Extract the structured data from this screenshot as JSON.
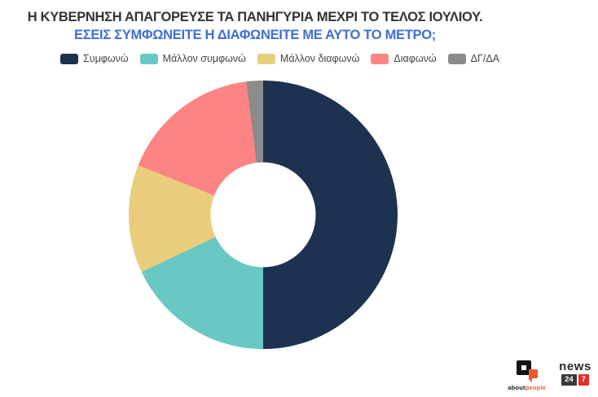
{
  "chart_data": {
    "type": "pie",
    "subtype": "donut",
    "title": "Η ΚΥΒΕΡΝΗΣΗ ΑΠΑΓΟΡΕΥΣΕ ΤΑ ΠΑΝΗΓΥΡΙΑ ΜΕΧΡΙ ΤΟ ΤΕΛΟΣ ΙΟΥΛΙΟΥ.",
    "subtitle": "ΕΣΕΙΣ ΣΥΜΦΩΝΕΙΤΕ Η ΔΙΑΦΩΝΕΙΤΕ ΜΕ ΑΥΤΟ ΤΟ ΜΕΤΡΟ;",
    "categories": [
      "Συμφωνώ",
      "Μάλλον συμφωνώ",
      "Μάλλον διαφωνώ",
      "Διαφωνώ",
      "ΔΓ/ΔΑ"
    ],
    "values": [
      50,
      18,
      13,
      17,
      2
    ],
    "unit": "%",
    "colors": [
      "#1d3150",
      "#69c8c3",
      "#eacd7c",
      "#fc8484",
      "#8b8b8b"
    ],
    "start_angle_deg": 0,
    "direction": "clockwise",
    "inner_radius_ratio": 0.39,
    "legend_position": "top-left",
    "grid": false,
    "data_labels": false,
    "title_color": "#333333",
    "subtitle_color": "#3e6fd0",
    "legend_text_color": "#444444"
  },
  "branding": {
    "aboutpeople": {
      "text_black": "about",
      "text_orange": "people",
      "orange": "#f1572e"
    },
    "news247": {
      "name": "news",
      "box1": "24",
      "box2": "7",
      "box1_bg": "#3a3a3a",
      "box2_bg": "#e1312a"
    }
  }
}
